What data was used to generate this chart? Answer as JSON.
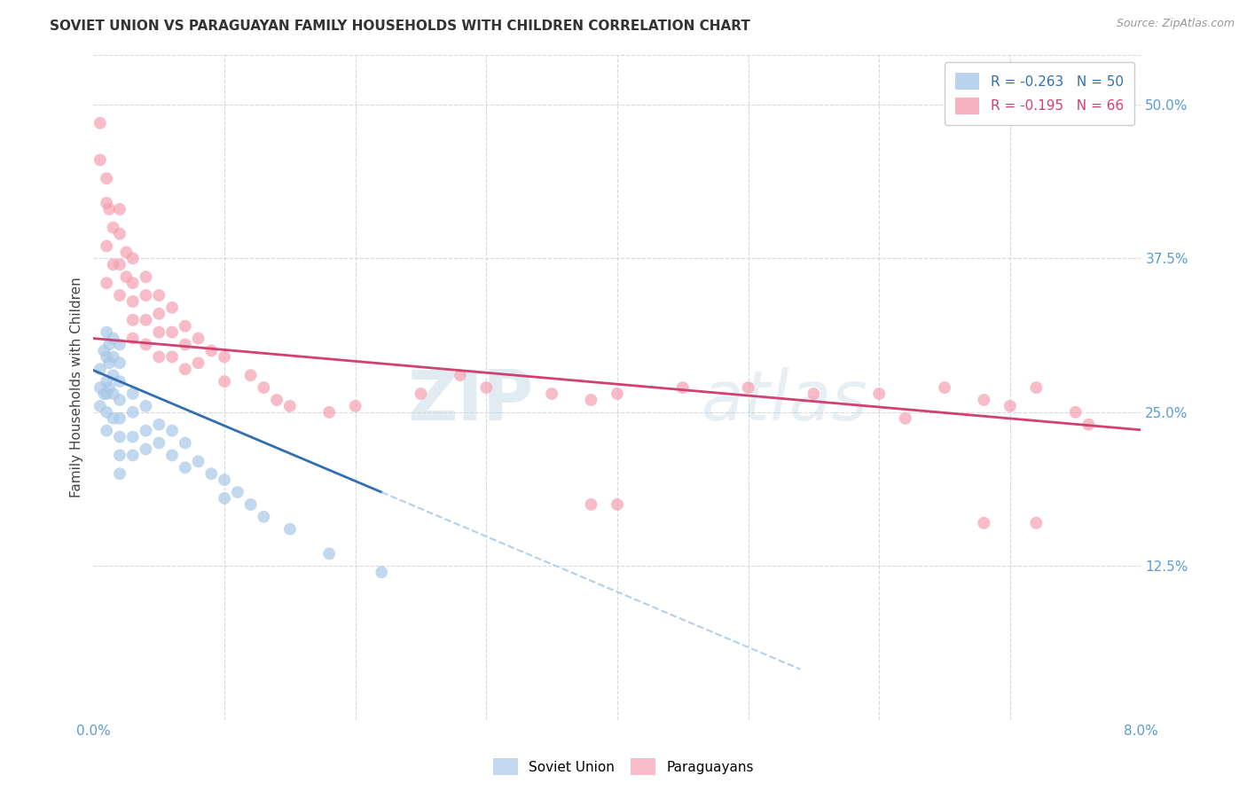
{
  "title": "SOVIET UNION VS PARAGUAYAN FAMILY HOUSEHOLDS WITH CHILDREN CORRELATION CHART",
  "source": "Source: ZipAtlas.com",
  "ylabel": "Family Households with Children",
  "xlim": [
    0.0,
    0.08
  ],
  "ylim": [
    0.0,
    0.54
  ],
  "xticks": [
    0.0,
    0.01,
    0.02,
    0.03,
    0.04,
    0.05,
    0.06,
    0.07,
    0.08
  ],
  "yticks_right": [
    0.125,
    0.25,
    0.375,
    0.5
  ],
  "ytick_right_labels": [
    "12.5%",
    "25.0%",
    "37.5%",
    "50.0%"
  ],
  "legend_blue_label": "Soviet Union",
  "legend_pink_label": "Paraguayans",
  "R_blue": -0.263,
  "N_blue": 50,
  "R_pink": -0.195,
  "N_pink": 66,
  "watermark_zip": "ZIP",
  "watermark_atlas": "atlas",
  "dot_size": 100,
  "blue_color": "#a8c8e8",
  "pink_color": "#f4a0b0",
  "blue_line_color": "#3070b0",
  "pink_line_color": "#d04070",
  "dashed_line_color": "#b0d0f0",
  "grid_color": "#d8d8d8",
  "blue_scatter_x": [
    0.0005,
    0.0005,
    0.0005,
    0.0008,
    0.0008,
    0.001,
    0.001,
    0.001,
    0.001,
    0.001,
    0.001,
    0.0012,
    0.0012,
    0.0012,
    0.0015,
    0.0015,
    0.0015,
    0.0015,
    0.0015,
    0.002,
    0.002,
    0.002,
    0.002,
    0.002,
    0.002,
    0.002,
    0.002,
    0.003,
    0.003,
    0.003,
    0.003,
    0.004,
    0.004,
    0.004,
    0.005,
    0.005,
    0.006,
    0.006,
    0.007,
    0.007,
    0.008,
    0.009,
    0.01,
    0.01,
    0.011,
    0.012,
    0.013,
    0.015,
    0.018,
    0.022
  ],
  "blue_scatter_y": [
    0.285,
    0.27,
    0.255,
    0.3,
    0.265,
    0.315,
    0.295,
    0.275,
    0.265,
    0.25,
    0.235,
    0.305,
    0.29,
    0.27,
    0.31,
    0.295,
    0.28,
    0.265,
    0.245,
    0.305,
    0.29,
    0.275,
    0.26,
    0.245,
    0.23,
    0.215,
    0.2,
    0.265,
    0.25,
    0.23,
    0.215,
    0.255,
    0.235,
    0.22,
    0.24,
    0.225,
    0.235,
    0.215,
    0.225,
    0.205,
    0.21,
    0.2,
    0.195,
    0.18,
    0.185,
    0.175,
    0.165,
    0.155,
    0.135,
    0.12
  ],
  "pink_scatter_x": [
    0.0005,
    0.0005,
    0.001,
    0.001,
    0.001,
    0.001,
    0.0012,
    0.0015,
    0.0015,
    0.002,
    0.002,
    0.002,
    0.002,
    0.0025,
    0.0025,
    0.003,
    0.003,
    0.003,
    0.003,
    0.003,
    0.004,
    0.004,
    0.004,
    0.004,
    0.005,
    0.005,
    0.005,
    0.005,
    0.006,
    0.006,
    0.006,
    0.007,
    0.007,
    0.007,
    0.008,
    0.008,
    0.009,
    0.01,
    0.01,
    0.012,
    0.013,
    0.014,
    0.015,
    0.018,
    0.02,
    0.025,
    0.028,
    0.03,
    0.035,
    0.038,
    0.04,
    0.045,
    0.05,
    0.055,
    0.06,
    0.062,
    0.065,
    0.068,
    0.07,
    0.072,
    0.075,
    0.076,
    0.038,
    0.04,
    0.068,
    0.072
  ],
  "pink_scatter_y": [
    0.485,
    0.455,
    0.44,
    0.42,
    0.385,
    0.355,
    0.415,
    0.4,
    0.37,
    0.415,
    0.395,
    0.37,
    0.345,
    0.38,
    0.36,
    0.375,
    0.355,
    0.34,
    0.325,
    0.31,
    0.36,
    0.345,
    0.325,
    0.305,
    0.345,
    0.33,
    0.315,
    0.295,
    0.335,
    0.315,
    0.295,
    0.32,
    0.305,
    0.285,
    0.31,
    0.29,
    0.3,
    0.295,
    0.275,
    0.28,
    0.27,
    0.26,
    0.255,
    0.25,
    0.255,
    0.265,
    0.28,
    0.27,
    0.265,
    0.26,
    0.265,
    0.27,
    0.27,
    0.265,
    0.265,
    0.245,
    0.27,
    0.26,
    0.255,
    0.27,
    0.25,
    0.24,
    0.175,
    0.175,
    0.16,
    0.16
  ]
}
